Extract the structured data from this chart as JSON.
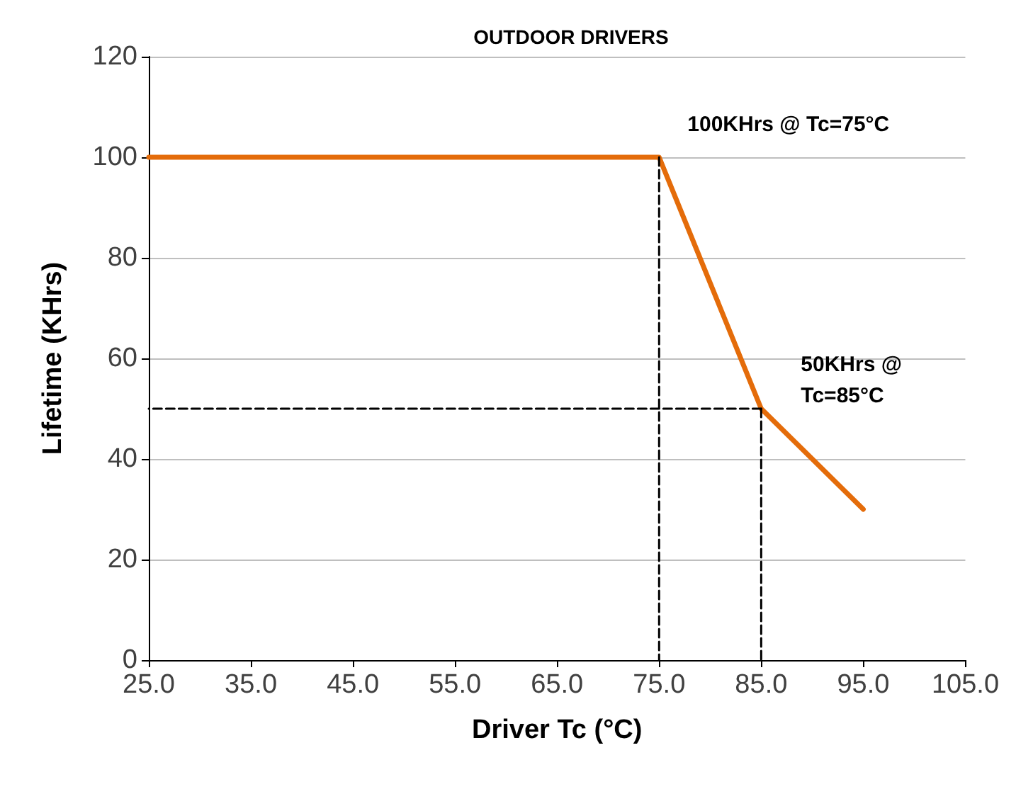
{
  "chart_data": {
    "type": "line",
    "title": "OUTDOOR DRIVERS",
    "xlabel": "Driver Tc (°C)",
    "ylabel": "Lifetime (KHrs)",
    "xlim": [
      25,
      105
    ],
    "xticks": [
      {
        "value": 25,
        "label": "25.0"
      },
      {
        "value": 35,
        "label": "35.0"
      },
      {
        "value": 45,
        "label": "45.0"
      },
      {
        "value": 55,
        "label": "55.0"
      },
      {
        "value": 65,
        "label": "65.0"
      },
      {
        "value": 75,
        "label": "75.0"
      },
      {
        "value": 85,
        "label": "85.0"
      },
      {
        "value": 95,
        "label": "95.0"
      },
      {
        "value": 105,
        "label": "105.0"
      }
    ],
    "ylim": [
      0,
      120
    ],
    "yticks": [
      0,
      20,
      40,
      60,
      80,
      100,
      120
    ],
    "grid": "y",
    "marker": "none",
    "series": [
      {
        "x": [
          75,
          75
        ],
        "values": [
          100,
          0
        ],
        "color": "#000000",
        "line_style": "dashed"
      },
      {
        "x": [
          85,
          85
        ],
        "values": [
          50,
          0
        ],
        "color": "#000000",
        "line_style": "dashed"
      },
      {
        "x": [
          85,
          25
        ],
        "values": [
          50,
          50
        ],
        "color": "#000000",
        "line_style": "dashed"
      },
      {
        "x": [
          25,
          75,
          85,
          95
        ],
        "values": [
          100,
          100,
          50,
          30
        ],
        "color": "#e46c0a",
        "line_style": "solid"
      }
    ],
    "annotations": [
      {
        "text": "100KHrs @ Tc=75°C",
        "x": 75,
        "y": 100
      },
      {
        "text": "50KHrs @\nTc=85°C",
        "x": 85,
        "y": 50
      }
    ]
  }
}
